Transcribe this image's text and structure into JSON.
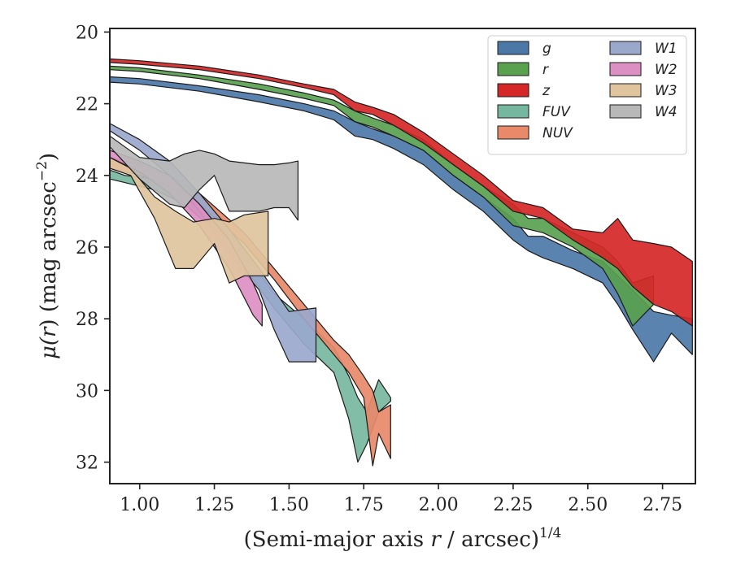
{
  "chart_data": {
    "type": "area",
    "xlabel": "(Semi-major axis r / arcsec)^1/4",
    "xlabel_parts": {
      "prefix": "(Semi-major axis ",
      "var": "r",
      "suffix": " / arcsec)",
      "sup": "1/4"
    },
    "ylabel": "μ(r) (mag arcsec^−2)",
    "ylabel_parts": {
      "mu": "μ(",
      "var": "r",
      "mid": ") (mag arcsec",
      "sup": "−2",
      "end": ")"
    },
    "xlim": [
      0.9,
      2.86
    ],
    "ylim": [
      32.6,
      19.9
    ],
    "y_inverted": true,
    "xticks": [
      1.0,
      1.25,
      1.5,
      1.75,
      2.0,
      2.25,
      2.5,
      2.75
    ],
    "xtick_labels": [
      "1.00",
      "1.25",
      "1.50",
      "1.75",
      "2.00",
      "2.25",
      "2.50",
      "2.75"
    ],
    "yticks": [
      20,
      22,
      24,
      26,
      28,
      30,
      32
    ],
    "ytick_labels": [
      "20",
      "22",
      "24",
      "26",
      "28",
      "30",
      "32"
    ],
    "grid": false,
    "legend": {
      "placement": "top-right",
      "columns": 2
    },
    "series": [
      {
        "name": "g",
        "color": "#4c78a8",
        "x": [
          0.9,
          1.0,
          1.2,
          1.4,
          1.55,
          1.65,
          1.72,
          1.78,
          1.85,
          1.95,
          2.05,
          2.15,
          2.25,
          2.3,
          2.35,
          2.45,
          2.55,
          2.6,
          2.65,
          2.72,
          2.78,
          2.85
        ],
        "lo": [
          21.25,
          21.3,
          21.5,
          21.75,
          22.0,
          22.2,
          22.5,
          22.7,
          22.9,
          23.3,
          24.0,
          24.6,
          25.2,
          25.7,
          25.7,
          26.1,
          26.4,
          26.8,
          27.2,
          27.8,
          27.9,
          28.0
        ],
        "hi": [
          21.4,
          21.45,
          21.65,
          21.95,
          22.2,
          22.45,
          22.9,
          23.0,
          23.25,
          23.7,
          24.4,
          25.0,
          25.8,
          26.1,
          26.3,
          26.6,
          27.0,
          27.6,
          28.3,
          29.2,
          28.4,
          29.0
        ]
      },
      {
        "name": "r",
        "color": "#59a14f",
        "x": [
          0.9,
          1.0,
          1.2,
          1.4,
          1.55,
          1.65,
          1.72,
          1.78,
          1.85,
          1.95,
          2.05,
          2.15,
          2.25,
          2.3,
          2.35,
          2.45,
          2.55,
          2.6,
          2.65,
          2.72
        ],
        "lo": [
          20.95,
          21.0,
          21.2,
          21.45,
          21.7,
          21.9,
          22.2,
          22.4,
          22.6,
          23.0,
          23.7,
          24.3,
          24.8,
          25.2,
          25.2,
          25.6,
          26.0,
          26.4,
          27.0,
          26.8
        ],
        "hi": [
          21.05,
          21.1,
          21.3,
          21.6,
          21.85,
          22.05,
          22.5,
          22.65,
          22.9,
          23.3,
          24.0,
          24.6,
          25.4,
          25.5,
          25.6,
          26.0,
          26.6,
          27.3,
          28.2,
          27.6
        ]
      },
      {
        "name": "z",
        "color": "#d62728",
        "x": [
          0.9,
          1.0,
          1.2,
          1.4,
          1.55,
          1.65,
          1.72,
          1.78,
          1.85,
          1.95,
          2.05,
          2.15,
          2.25,
          2.3,
          2.35,
          2.45,
          2.55,
          2.6,
          2.65,
          2.72,
          2.78,
          2.85
        ],
        "lo": [
          20.75,
          20.8,
          20.95,
          21.2,
          21.45,
          21.6,
          21.95,
          22.1,
          22.3,
          22.8,
          23.4,
          24.0,
          24.7,
          24.8,
          24.9,
          25.5,
          25.6,
          25.2,
          25.8,
          25.9,
          26.0,
          26.4
        ],
        "hi": [
          20.85,
          20.9,
          21.05,
          21.3,
          21.55,
          21.75,
          22.2,
          22.3,
          22.6,
          23.1,
          23.7,
          24.3,
          25.0,
          25.1,
          25.2,
          25.8,
          26.3,
          26.6,
          27.1,
          27.6,
          27.8,
          28.2
        ]
      },
      {
        "name": "FUV",
        "color": "#76b7a0",
        "x": [
          0.9,
          0.95,
          1.05,
          1.15,
          1.3,
          1.38,
          1.45,
          1.55,
          1.6,
          1.65,
          1.7,
          1.73,
          1.76,
          1.8,
          1.84
        ],
        "lo": [
          23.85,
          24.0,
          24.1,
          24.5,
          25.5,
          26.5,
          27.3,
          28.0,
          28.4,
          28.8,
          29.6,
          30.2,
          30.6,
          29.7,
          30.2
        ],
        "hi": [
          24.1,
          24.2,
          24.4,
          24.8,
          25.9,
          26.9,
          27.7,
          28.7,
          29.1,
          29.5,
          30.8,
          32.0,
          31.5,
          30.6,
          30.3
        ]
      },
      {
        "name": "NUV",
        "color": "#e8896a",
        "x": [
          0.9,
          1.0,
          1.1,
          1.2,
          1.35,
          1.45,
          1.55,
          1.65,
          1.7,
          1.75,
          1.78,
          1.8,
          1.84
        ],
        "lo": [
          23.5,
          23.7,
          24.0,
          24.5,
          25.6,
          26.6,
          27.6,
          28.6,
          29.0,
          29.6,
          30.0,
          30.6,
          30.4
        ],
        "hi": [
          23.8,
          24.0,
          24.3,
          24.8,
          25.9,
          26.9,
          28.0,
          29.0,
          29.5,
          30.2,
          32.1,
          31.2,
          31.9
        ]
      },
      {
        "name": "W1",
        "color": "#9aa8cc",
        "x": [
          0.9,
          1.0,
          1.1,
          1.2,
          1.3,
          1.4,
          1.45,
          1.5,
          1.59
        ],
        "lo": [
          22.55,
          23.0,
          23.6,
          24.5,
          25.5,
          26.6,
          27.2,
          27.8,
          27.7
        ],
        "hi": [
          22.75,
          23.3,
          24.0,
          25.0,
          26.2,
          27.2,
          28.3,
          29.2,
          29.2
        ]
      },
      {
        "name": "W2",
        "color": "#dc8fc2",
        "x": [
          0.9,
          1.0,
          1.1,
          1.2,
          1.3,
          1.38,
          1.41
        ],
        "lo": [
          23.3,
          23.6,
          24.0,
          24.8,
          25.8,
          27.0,
          27.6
        ],
        "hi": [
          23.5,
          23.9,
          24.5,
          25.4,
          26.6,
          27.9,
          28.2
        ]
      },
      {
        "name": "W3",
        "color": "#e0c49e",
        "x": [
          0.9,
          0.97,
          1.05,
          1.12,
          1.18,
          1.25,
          1.3,
          1.35,
          1.43
        ],
        "lo": [
          23.5,
          23.8,
          24.6,
          25.0,
          25.3,
          25.2,
          25.3,
          25.1,
          25.0
        ],
        "hi": [
          23.8,
          24.0,
          25.2,
          26.6,
          26.6,
          25.9,
          27.0,
          26.8,
          26.8
        ]
      },
      {
        "name": "W4",
        "color": "#b8b8b8",
        "x": [
          0.9,
          1.0,
          1.1,
          1.15,
          1.2,
          1.25,
          1.3,
          1.4,
          1.45,
          1.5,
          1.53
        ],
        "lo": [
          22.9,
          23.5,
          23.6,
          23.4,
          23.3,
          23.4,
          23.6,
          23.7,
          23.7,
          23.65,
          23.6
        ],
        "hi": [
          23.2,
          24.1,
          24.8,
          24.9,
          24.4,
          24.0,
          25.0,
          25.0,
          24.9,
          24.9,
          25.25
        ]
      }
    ]
  }
}
